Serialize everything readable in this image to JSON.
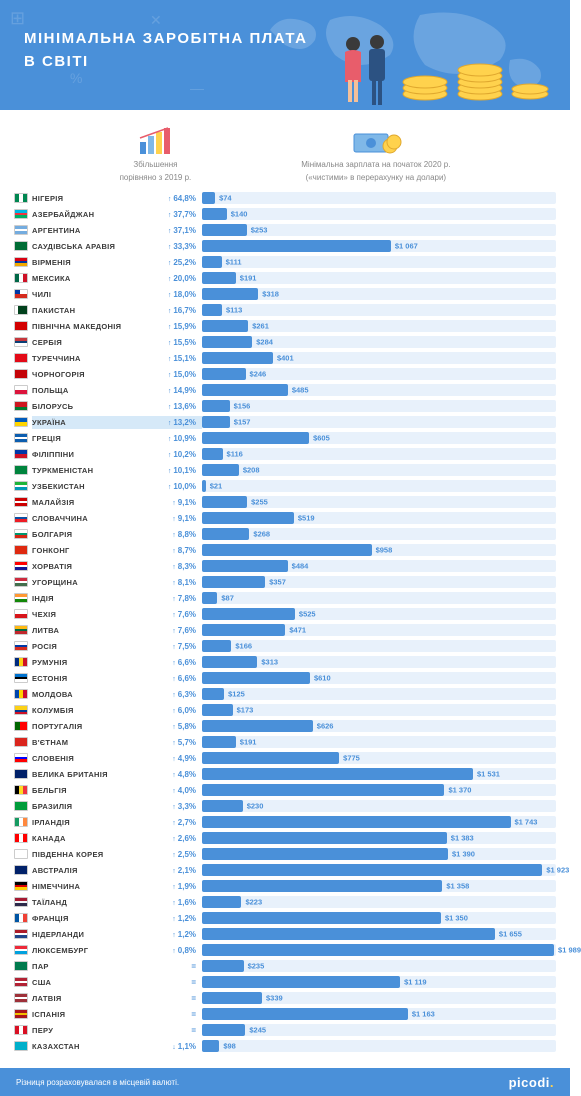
{
  "title_line1": "МІНІМАЛЬНА ЗАРОБІТНА ПЛАТА",
  "title_line2": "В СВІТІ",
  "col1_line1": "Збільшення",
  "col1_line2": "порівняно з 2019 р.",
  "col2_line1": "Мінімальна зарплата на початок 2020 р.",
  "col2_line2": "(«чистими» в перерахунку на долари)",
  "footer_text": "Різниця розраховувалася в місцевій валюті.",
  "logo_text": "picodi",
  "currency_prefix": "$",
  "bar_max_value": 2000,
  "colors": {
    "brand": "#4a90d9",
    "bar_bg": "#e8f1fb",
    "text_grey": "#888888",
    "text_dark": "#3a3a3a",
    "highlight_bg": "#d6e9f8",
    "coin": "#ffd24d"
  },
  "rows": [
    {
      "country": "НІГЕРІЯ",
      "pct": "64,8%",
      "value": 74,
      "flag": [
        [
          "v",
          "#008751",
          "#ffffff",
          "#008751"
        ]
      ]
    },
    {
      "country": "АЗЕРБАЙДЖАН",
      "pct": "37,7%",
      "value": 140,
      "flag": [
        [
          "h",
          "#00b5e2",
          "#ef3340",
          "#00af66"
        ]
      ]
    },
    {
      "country": "АРГЕНТИНА",
      "pct": "37,1%",
      "value": 253,
      "flag": [
        [
          "h",
          "#74acdf",
          "#ffffff",
          "#74acdf"
        ]
      ]
    },
    {
      "country": "САУДІВСЬКА АРАВІЯ",
      "pct": "33,3%",
      "value": 1067,
      "flag": [
        [
          "s",
          "#006c35"
        ]
      ]
    },
    {
      "country": "ВІРМЕНІЯ",
      "pct": "25,2%",
      "value": 111,
      "flag": [
        [
          "h",
          "#d90012",
          "#0033a0",
          "#f2a800"
        ]
      ]
    },
    {
      "country": "МЕКСИКА",
      "pct": "20,0%",
      "value": 191,
      "flag": [
        [
          "v",
          "#006847",
          "#ffffff",
          "#ce1126"
        ]
      ]
    },
    {
      "country": "ЧИЛІ",
      "pct": "18,0%",
      "value": 318,
      "flag": [
        [
          "chile"
        ]
      ]
    },
    {
      "country": "ПАКИСТАН",
      "pct": "16,7%",
      "value": 113,
      "flag": [
        [
          "pak"
        ]
      ]
    },
    {
      "country": "ПІВНІЧНА МАКЕДОНІЯ",
      "pct": "15,9%",
      "value": 261,
      "flag": [
        [
          "s",
          "#d20000"
        ]
      ]
    },
    {
      "country": "СЕРБІЯ",
      "pct": "15,5%",
      "value": 284,
      "flag": [
        [
          "h",
          "#c6363c",
          "#0c4076",
          "#ffffff"
        ]
      ]
    },
    {
      "country": "ТУРЕЧЧИНА",
      "pct": "15,1%",
      "value": 401,
      "flag": [
        [
          "s",
          "#e30a17"
        ]
      ]
    },
    {
      "country": "ЧОРНОГОРІЯ",
      "pct": "15,0%",
      "value": 246,
      "flag": [
        [
          "s",
          "#c40308"
        ]
      ]
    },
    {
      "country": "ПОЛЬЩА",
      "pct": "14,9%",
      "value": 485,
      "flag": [
        [
          "h2",
          "#ffffff",
          "#dc143c"
        ]
      ]
    },
    {
      "country": "БІЛОРУСЬ",
      "pct": "13,6%",
      "value": 156,
      "flag": [
        [
          "h23",
          "#ce1720",
          "#007c30"
        ]
      ]
    },
    {
      "country": "УКРАЇНА",
      "pct": "13,2%",
      "value": 157,
      "highlight": true,
      "flag": [
        [
          "h2",
          "#005bbb",
          "#ffd500"
        ]
      ]
    },
    {
      "country": "ГРЕЦІЯ",
      "pct": "10,9%",
      "value": 605,
      "flag": [
        [
          "h",
          "#0d5eaf",
          "#ffffff",
          "#0d5eaf"
        ]
      ]
    },
    {
      "country": "ФІЛІППІНИ",
      "pct": "10,2%",
      "value": 116,
      "flag": [
        [
          "h2",
          "#0038a8",
          "#ce1126"
        ]
      ]
    },
    {
      "country": "ТУРКМЕНІСТАН",
      "pct": "10,1%",
      "value": 208,
      "flag": [
        [
          "s",
          "#00843d"
        ]
      ]
    },
    {
      "country": "УЗБЕКИСТАН",
      "pct": "10,0%",
      "value": 21,
      "flag": [
        [
          "h",
          "#1eb53a",
          "#ffffff",
          "#0099b5"
        ]
      ]
    },
    {
      "country": "МАЛАЙЗІЯ",
      "pct": "9,1%",
      "value": 255,
      "flag": [
        [
          "h",
          "#cc0001",
          "#ffffff",
          "#cc0001"
        ]
      ]
    },
    {
      "country": "СЛОВАЧЧИНА",
      "pct": "9,1%",
      "value": 519,
      "flag": [
        [
          "h",
          "#ffffff",
          "#0b4ea2",
          "#ee1c25"
        ]
      ]
    },
    {
      "country": "БОЛГАРІЯ",
      "pct": "8,8%",
      "value": 268,
      "flag": [
        [
          "h",
          "#ffffff",
          "#00966e",
          "#d62612"
        ]
      ]
    },
    {
      "country": "ГОНКОНГ",
      "pct": "8,7%",
      "value": 958,
      "flag": [
        [
          "s",
          "#de2910"
        ]
      ]
    },
    {
      "country": "ХОРВАТІЯ",
      "pct": "8,3%",
      "value": 484,
      "flag": [
        [
          "h",
          "#ff0000",
          "#ffffff",
          "#171796"
        ]
      ]
    },
    {
      "country": "УГОРЩИНА",
      "pct": "8,1%",
      "value": 357,
      "flag": [
        [
          "h",
          "#cd2a3e",
          "#ffffff",
          "#436f4d"
        ]
      ]
    },
    {
      "country": "ІНДІЯ",
      "pct": "7,8%",
      "value": 87,
      "flag": [
        [
          "h",
          "#ff9933",
          "#ffffff",
          "#138808"
        ]
      ]
    },
    {
      "country": "ЧЕХІЯ",
      "pct": "7,6%",
      "value": 525,
      "flag": [
        [
          "h2",
          "#ffffff",
          "#d7141a"
        ]
      ]
    },
    {
      "country": "ЛИТВА",
      "pct": "7,6%",
      "value": 471,
      "flag": [
        [
          "h",
          "#fdb913",
          "#006a44",
          "#c1272d"
        ]
      ]
    },
    {
      "country": "РОСІЯ",
      "pct": "7,5%",
      "value": 166,
      "flag": [
        [
          "h",
          "#ffffff",
          "#0039a6",
          "#d52b1e"
        ]
      ]
    },
    {
      "country": "РУМУНІЯ",
      "pct": "6,6%",
      "value": 313,
      "flag": [
        [
          "v",
          "#002b7f",
          "#fcd116",
          "#ce1126"
        ]
      ]
    },
    {
      "country": "ЕСТОНІЯ",
      "pct": "6,6%",
      "value": 610,
      "flag": [
        [
          "h",
          "#0072ce",
          "#000000",
          "#ffffff"
        ]
      ]
    },
    {
      "country": "МОЛДОВА",
      "pct": "6,3%",
      "value": 125,
      "flag": [
        [
          "v",
          "#0046ae",
          "#ffd200",
          "#cc092f"
        ]
      ]
    },
    {
      "country": "КОЛУМБІЯ",
      "pct": "6,0%",
      "value": 173,
      "flag": [
        [
          "col"
        ]
      ]
    },
    {
      "country": "ПОРТУГАЛІЯ",
      "pct": "5,8%",
      "value": 626,
      "flag": [
        [
          "por"
        ]
      ]
    },
    {
      "country": "В'ЄТНАМ",
      "pct": "5,7%",
      "value": 191,
      "flag": [
        [
          "s",
          "#da251d"
        ]
      ]
    },
    {
      "country": "СЛОВЕНІЯ",
      "pct": "4,9%",
      "value": 775,
      "flag": [
        [
          "h",
          "#ffffff",
          "#0000ff",
          "#ff0000"
        ]
      ]
    },
    {
      "country": "ВЕЛИКА БРИТАНІЯ",
      "pct": "4,8%",
      "value": 1531,
      "flag": [
        [
          "s",
          "#012169"
        ]
      ]
    },
    {
      "country": "БЕЛЬГІЯ",
      "pct": "4,0%",
      "value": 1370,
      "flag": [
        [
          "v",
          "#000000",
          "#fdda24",
          "#ef3340"
        ]
      ]
    },
    {
      "country": "БРАЗИЛІЯ",
      "pct": "3,3%",
      "value": 230,
      "flag": [
        [
          "s",
          "#009c3b"
        ]
      ]
    },
    {
      "country": "ІРЛАНДІЯ",
      "pct": "2,7%",
      "value": 1743,
      "flag": [
        [
          "v",
          "#169b62",
          "#ffffff",
          "#ff883e"
        ]
      ]
    },
    {
      "country": "КАНАДА",
      "pct": "2,6%",
      "value": 1383,
      "flag": [
        [
          "v",
          "#ff0000",
          "#ffffff",
          "#ff0000"
        ]
      ]
    },
    {
      "country": "ПІВДЕННА КОРЕЯ",
      "pct": "2,5%",
      "value": 1390,
      "flag": [
        [
          "s",
          "#ffffff"
        ]
      ]
    },
    {
      "country": "АВСТРАЛІЯ",
      "pct": "2,1%",
      "value": 1923,
      "flag": [
        [
          "s",
          "#012169"
        ]
      ]
    },
    {
      "country": "НІМЕЧЧИНА",
      "pct": "1,9%",
      "value": 1358,
      "flag": [
        [
          "h",
          "#000000",
          "#dd0000",
          "#ffce00"
        ]
      ]
    },
    {
      "country": "ТАЇЛАНД",
      "pct": "1,6%",
      "value": 223,
      "flag": [
        [
          "h",
          "#a51931",
          "#f4f5f8",
          "#2d2a4a"
        ]
      ]
    },
    {
      "country": "ФРАНЦІЯ",
      "pct": "1,2%",
      "value": 1350,
      "flag": [
        [
          "v",
          "#0055a4",
          "#ffffff",
          "#ef4135"
        ]
      ]
    },
    {
      "country": "НІДЕРЛАНДИ",
      "pct": "1,2%",
      "value": 1655,
      "flag": [
        [
          "h",
          "#ae1c28",
          "#ffffff",
          "#21468b"
        ]
      ]
    },
    {
      "country": "ЛЮКСЕМБУРГ",
      "pct": "0,8%",
      "value": 1989,
      "flag": [
        [
          "h",
          "#ed2939",
          "#ffffff",
          "#00a1de"
        ]
      ]
    },
    {
      "country": "ПАР",
      "pct": "=",
      "value": 235,
      "flag": [
        [
          "s",
          "#007a4d"
        ]
      ]
    },
    {
      "country": "США",
      "pct": "=",
      "value": 1119,
      "flag": [
        [
          "h",
          "#b22234",
          "#ffffff",
          "#b22234"
        ]
      ]
    },
    {
      "country": "ЛАТВІЯ",
      "pct": "=",
      "value": 339,
      "flag": [
        [
          "h",
          "#9e3039",
          "#ffffff",
          "#9e3039"
        ]
      ]
    },
    {
      "country": "ІСПАНІЯ",
      "pct": "=",
      "value": 1163,
      "flag": [
        [
          "h",
          "#aa151b",
          "#f1bf00",
          "#aa151b"
        ]
      ]
    },
    {
      "country": "ПЕРУ",
      "pct": "=",
      "value": 245,
      "flag": [
        [
          "v",
          "#d91023",
          "#ffffff",
          "#d91023"
        ]
      ]
    },
    {
      "country": "КАЗАХСТАН",
      "pct": "1,1%",
      "value": 98,
      "down": true,
      "flag": [
        [
          "s",
          "#00afca"
        ]
      ]
    }
  ]
}
